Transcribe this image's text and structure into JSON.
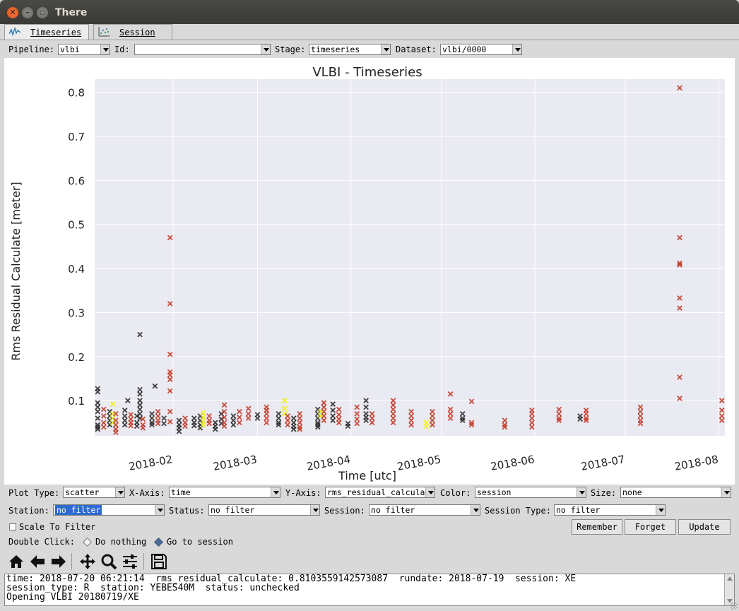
{
  "window": {
    "title": "There"
  },
  "tabs": [
    {
      "label": "Timeseries",
      "active": true,
      "icon": "timeseries-icon"
    },
    {
      "label": "Session",
      "active": false,
      "icon": "scatter-icon"
    }
  ],
  "selectors": {
    "pipeline_label": "Pipeline:",
    "pipeline_value": "vlbi",
    "id_label": "Id:",
    "id_value": "",
    "stage_label": "Stage:",
    "stage_value": "timeseries",
    "dataset_label": "Dataset:",
    "dataset_value": "vlbi/0000"
  },
  "chart_data": {
    "type": "scatter",
    "title": "VLBI - Timeseries",
    "xlabel": "Time [utc]",
    "ylabel": "Rms Residual Calculate [meter]",
    "x_ticks": [
      "2018-02",
      "2018-03",
      "2018-04",
      "2018-05",
      "2018-06",
      "2018-07",
      "2018-08"
    ],
    "y_ticks": [
      "0.1",
      "0.2",
      "0.3",
      "0.4",
      "0.5",
      "0.6",
      "0.7",
      "0.8"
    ],
    "xlim": [
      "2018-01-06",
      "2018-08-03"
    ],
    "ylim": [
      0.02,
      0.83
    ],
    "marker": "x",
    "background": "#eaeaf2",
    "grid": true,
    "colors": {
      "black": "#222222",
      "red": "#c0311d",
      "yellow": "#f2f200"
    },
    "outliers": [
      {
        "x": "2018-01-31",
        "y": 0.47,
        "color": "red"
      },
      {
        "x": "2018-01-31",
        "y": 0.32,
        "color": "red"
      },
      {
        "x": "2018-01-31",
        "y": 0.205,
        "color": "red"
      },
      {
        "x": "2018-01-31",
        "y": 0.165,
        "color": "red"
      },
      {
        "x": "2018-01-31",
        "y": 0.158,
        "color": "red"
      },
      {
        "x": "2018-01-31",
        "y": 0.148,
        "color": "red"
      },
      {
        "x": "2018-01-31",
        "y": 0.122,
        "color": "red"
      },
      {
        "x": "2018-01-21",
        "y": 0.25,
        "color": "black"
      },
      {
        "x": "2018-01-26",
        "y": 0.133,
        "color": "black"
      },
      {
        "x": "2018-01-07",
        "y": 0.127,
        "color": "black"
      },
      {
        "x": "2018-07-19",
        "y": 0.81,
        "color": "red"
      },
      {
        "x": "2018-07-19",
        "y": 0.47,
        "color": "red"
      },
      {
        "x": "2018-07-19",
        "y": 0.412,
        "color": "red"
      },
      {
        "x": "2018-07-19",
        "y": 0.408,
        "color": "red"
      },
      {
        "x": "2018-07-19",
        "y": 0.333,
        "color": "red"
      },
      {
        "x": "2018-07-19",
        "y": 0.31,
        "color": "red"
      },
      {
        "x": "2018-07-19",
        "y": 0.153,
        "color": "red"
      },
      {
        "x": "2018-07-19",
        "y": 0.105,
        "color": "red"
      }
    ],
    "sessions": [
      {
        "x": "2018-01-07",
        "color": "black",
        "ys": [
          0.12,
          0.095,
          0.085,
          0.075,
          0.06,
          0.045,
          0.04,
          0.035
        ]
      },
      {
        "x": "2018-01-09",
        "color": "red",
        "ys": [
          0.08,
          0.065,
          0.05,
          0.04
        ]
      },
      {
        "x": "2018-01-11",
        "color": "black",
        "ys": [
          0.075,
          0.065,
          0.055,
          0.045
        ]
      },
      {
        "x": "2018-01-12",
        "color": "yellow",
        "ys": [
          0.092,
          0.07,
          0.06,
          0.05
        ]
      },
      {
        "x": "2018-01-13",
        "color": "red",
        "ys": [
          0.07,
          0.055,
          0.045,
          0.035,
          0.028
        ]
      },
      {
        "x": "2018-01-16",
        "color": "black",
        "ys": [
          0.078,
          0.065,
          0.055,
          0.045
        ]
      },
      {
        "x": "2018-01-17",
        "color": "black",
        "ys": [
          0.1
        ]
      },
      {
        "x": "2018-01-18",
        "color": "red",
        "ys": [
          0.068,
          0.058,
          0.05,
          0.043
        ]
      },
      {
        "x": "2018-01-20",
        "color": "black",
        "ys": [
          0.065,
          0.05,
          0.042
        ]
      },
      {
        "x": "2018-01-21",
        "color": "black",
        "ys": [
          0.125,
          0.115,
          0.1,
          0.09,
          0.08,
          0.07,
          0.06
        ]
      },
      {
        "x": "2018-01-22",
        "color": "red",
        "ys": [
          0.058,
          0.045,
          0.038
        ]
      },
      {
        "x": "2018-01-25",
        "color": "black",
        "ys": [
          0.07,
          0.06,
          0.05,
          0.045
        ]
      },
      {
        "x": "2018-01-27",
        "color": "red",
        "ys": [
          0.075,
          0.065,
          0.055,
          0.048
        ]
      },
      {
        "x": "2018-01-29",
        "color": "black",
        "ys": [
          0.06,
          0.048
        ]
      },
      {
        "x": "2018-01-31",
        "color": "red",
        "ys": [
          0.075,
          0.052
        ]
      },
      {
        "x": "2018-02-03",
        "color": "black",
        "ys": [
          0.055,
          0.045,
          0.038,
          0.03
        ]
      },
      {
        "x": "2018-02-05",
        "color": "red",
        "ys": [
          0.06,
          0.05,
          0.042
        ]
      },
      {
        "x": "2018-02-08",
        "color": "black",
        "ys": [
          0.06,
          0.05,
          0.043
        ]
      },
      {
        "x": "2018-02-10",
        "color": "black",
        "ys": [
          0.065,
          0.055,
          0.045,
          0.038
        ]
      },
      {
        "x": "2018-02-11",
        "color": "yellow",
        "ys": [
          0.072,
          0.062,
          0.052,
          0.045
        ]
      },
      {
        "x": "2018-02-13",
        "color": "red",
        "ys": [
          0.065,
          0.055,
          0.048
        ]
      },
      {
        "x": "2018-02-15",
        "color": "black",
        "ys": [
          0.05,
          0.042,
          0.035
        ]
      },
      {
        "x": "2018-02-17",
        "color": "black",
        "ys": [
          0.07,
          0.058,
          0.048
        ]
      },
      {
        "x": "2018-02-18",
        "color": "red",
        "ys": [
          0.09,
          0.075,
          0.062,
          0.05,
          0.042
        ]
      },
      {
        "x": "2018-02-21",
        "color": "black",
        "ys": [
          0.065,
          0.055,
          0.045
        ]
      },
      {
        "x": "2018-02-23",
        "color": "red",
        "ys": [
          0.075,
          0.062,
          0.05
        ]
      },
      {
        "x": "2018-02-26",
        "color": "red",
        "ys": [
          0.082,
          0.07,
          0.06
        ]
      },
      {
        "x": "2018-03-01",
        "color": "black",
        "ys": [
          0.068,
          0.06
        ]
      },
      {
        "x": "2018-03-04",
        "color": "red",
        "ys": [
          0.085,
          0.078,
          0.07,
          0.06,
          0.05
        ]
      },
      {
        "x": "2018-03-08",
        "color": "black",
        "ys": [
          0.07,
          0.06,
          0.05,
          0.045
        ]
      },
      {
        "x": "2018-03-10",
        "color": "yellow",
        "ys": [
          0.1,
          0.082,
          0.07
        ]
      },
      {
        "x": "2018-03-11",
        "color": "red",
        "ys": [
          0.065,
          0.055,
          0.045
        ]
      },
      {
        "x": "2018-03-13",
        "color": "black",
        "ys": [
          0.06,
          0.05,
          0.042,
          0.035
        ]
      },
      {
        "x": "2018-03-15",
        "color": "red",
        "ys": [
          0.07,
          0.06,
          0.05,
          0.04,
          0.035
        ]
      },
      {
        "x": "2018-03-21",
        "color": "black",
        "ys": [
          0.08,
          0.07,
          0.06,
          0.05,
          0.045,
          0.04
        ]
      },
      {
        "x": "2018-03-22",
        "color": "yellow",
        "ys": [
          0.075,
          0.065
        ]
      },
      {
        "x": "2018-03-23",
        "color": "red",
        "ys": [
          0.095,
          0.085,
          0.075,
          0.065,
          0.055
        ]
      },
      {
        "x": "2018-03-26",
        "color": "black",
        "ys": [
          0.092,
          0.078,
          0.065,
          0.055
        ]
      },
      {
        "x": "2018-03-28",
        "color": "red",
        "ys": [
          0.08,
          0.068,
          0.058,
          0.05
        ]
      },
      {
        "x": "2018-03-31",
        "color": "black",
        "ys": [
          0.048,
          0.042
        ]
      },
      {
        "x": "2018-04-03",
        "color": "red",
        "ys": [
          0.085,
          0.07,
          0.058,
          0.048
        ]
      },
      {
        "x": "2018-04-06",
        "color": "black",
        "ys": [
          0.1,
          0.085,
          0.07,
          0.062,
          0.055
        ]
      },
      {
        "x": "2018-04-08",
        "color": "red",
        "ys": [
          0.07,
          0.06,
          0.05
        ]
      },
      {
        "x": "2018-04-15",
        "color": "red",
        "ys": [
          0.1,
          0.09,
          0.08,
          0.07,
          0.06,
          0.05
        ]
      },
      {
        "x": "2018-04-21",
        "color": "red",
        "ys": [
          0.075,
          0.065,
          0.055,
          0.045
        ]
      },
      {
        "x": "2018-04-26",
        "color": "yellow",
        "ys": [
          0.05,
          0.042
        ]
      },
      {
        "x": "2018-04-28",
        "color": "red",
        "ys": [
          0.075,
          0.065,
          0.055,
          0.045
        ]
      },
      {
        "x": "2018-05-04",
        "color": "red",
        "ys": [
          0.115,
          0.08,
          0.07,
          0.06
        ]
      },
      {
        "x": "2018-05-08",
        "color": "black",
        "ys": [
          0.07,
          0.06,
          0.055
        ]
      },
      {
        "x": "2018-05-11",
        "color": "red",
        "ys": [
          0.098,
          0.05,
          0.045
        ]
      },
      {
        "x": "2018-05-22",
        "color": "red",
        "ys": [
          0.055,
          0.045,
          0.04
        ]
      },
      {
        "x": "2018-05-31",
        "color": "red",
        "ys": [
          0.078,
          0.07,
          0.06,
          0.05,
          0.04
        ]
      },
      {
        "x": "2018-06-09",
        "color": "red",
        "ys": [
          0.08,
          0.07,
          0.06,
          0.055
        ]
      },
      {
        "x": "2018-06-16",
        "color": "black",
        "ys": [
          0.065,
          0.058
        ]
      },
      {
        "x": "2018-06-18",
        "color": "red",
        "ys": [
          0.078,
          0.07,
          0.06,
          0.055
        ]
      },
      {
        "x": "2018-07-06",
        "color": "red",
        "ys": [
          0.085,
          0.075,
          0.065,
          0.055,
          0.048
        ]
      },
      {
        "x": "2018-08-02",
        "color": "red",
        "ys": [
          0.1,
          0.078,
          0.065,
          0.055
        ]
      }
    ]
  },
  "controls": {
    "plot_type_label": "Plot Type:",
    "plot_type_value": "scatter",
    "x_axis_label": "X-Axis:",
    "x_axis_value": "time",
    "y_axis_label": "Y-Axis:",
    "y_axis_value": "rms_residual_calcula",
    "color_label": "Color:",
    "color_value": "session",
    "size_label": "Size:",
    "size_value": "none",
    "station_label": "Station:",
    "station_value": "no filter",
    "status_label": "Status:",
    "status_value": "no filter",
    "session_label": "Session:",
    "session_value": "no filter",
    "session_type_label": "Session Type:",
    "session_type_value": "no filter",
    "scale_to_filter_label": "Scale To Filter",
    "remember_label": "Remember",
    "forget_label": "Forget",
    "update_label": "Update",
    "double_click_label": "Double Click:",
    "do_nothing_label": "Do nothing",
    "go_to_session_label": "Go to session"
  },
  "toolbar": {
    "home_icon": "home-icon",
    "back_icon": "back-arrow-icon",
    "forward_icon": "forward-arrow-icon",
    "pan_icon": "pan-icon",
    "zoom_icon": "zoom-icon",
    "configure_icon": "sliders-icon",
    "save_icon": "save-icon"
  },
  "console": {
    "line1": "time: 2018-07-20 06:21:14  rms_residual_calculate: 0.8103559142573087  rundate: 2018-07-19  session: XE",
    "line2": "session_type: R  station: YEBES40M  status: unchecked",
    "line3": "Opening VLBI 20180719/XE"
  }
}
